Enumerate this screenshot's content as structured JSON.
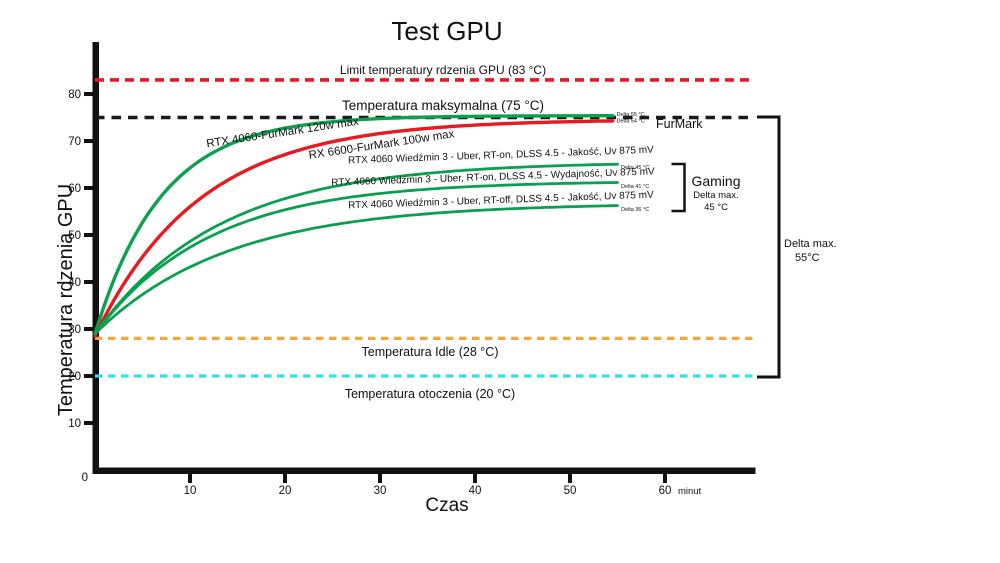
{
  "title": "Test GPU",
  "axes": {
    "y_label": "Temperatura rdzenia GPU",
    "x_label": "Czas",
    "x_unit": "minut",
    "origin_label": "0"
  },
  "annotations": {
    "furmark_group": "FurMark",
    "gaming_group": "Gaming",
    "gaming_sub1": "Delta max.",
    "gaming_sub2": "45 °C",
    "total_delta_line1": "Delta max.",
    "total_delta_line2": "55°C"
  },
  "chart_data": {
    "type": "line",
    "title": "Test GPU",
    "xlabel": "Czas",
    "x_unit": "minut",
    "ylabel": "Temperatura rdzenia GPU",
    "xlim": [
      0,
      69
    ],
    "ylim": [
      0,
      91
    ],
    "x_ticks": [
      10,
      20,
      30,
      40,
      50,
      60
    ],
    "y_ticks": [
      10,
      20,
      30,
      40,
      50,
      60,
      70,
      80
    ],
    "grid": false,
    "axis_color": "#111111",
    "reference_lines": [
      {
        "label": "Limit temperatury rdzenia GPU (83 °C)",
        "value": 83,
        "color": "#e8191f",
        "style": "dashed",
        "dash": "9 6",
        "width": 3.6
      },
      {
        "label": "Temperatura maksymalna (75 °C)",
        "value": 75,
        "color": "#1a1a1a",
        "style": "dashed",
        "dash": "9.5 7",
        "width": 3.6
      },
      {
        "label": "Temperatura Idle (28 °C)",
        "value": 28,
        "color": "#f3a63b",
        "style": "dashed",
        "dash": "7.5 5.5",
        "width": 3.2
      },
      {
        "label": "Temperatura otoczenia (20 °C)",
        "value": 20,
        "color": "#35dfe6",
        "style": "dashed",
        "dash": "7.5 5.5",
        "width": 3.2
      }
    ],
    "series": [
      {
        "name": "RTX 4060-FurMark 120w max",
        "color": "#0aa04e",
        "width": 3.4,
        "start_temp": 29,
        "asymptote_temp": 75.4,
        "tau_min": 7,
        "t_end": 54.5,
        "final_temp": 75,
        "delta_label": "Delta 55 °C",
        "delta_c": 55,
        "points": [
          [
            0,
            29
          ],
          [
            2,
            40.5
          ],
          [
            4,
            49
          ],
          [
            6,
            55.5
          ],
          [
            8,
            60.5
          ],
          [
            10,
            64
          ],
          [
            14,
            69
          ],
          [
            18,
            71.5
          ],
          [
            22,
            73
          ],
          [
            26,
            74
          ],
          [
            30,
            74.8
          ],
          [
            38,
            75.1
          ],
          [
            46,
            75.3
          ],
          [
            54.5,
            75.4
          ]
        ]
      },
      {
        "name": "RX 6600-FurMark 100w max",
        "color": "#e8191f",
        "width": 3.4,
        "start_temp": 28.5,
        "asymptote_temp": 74.6,
        "tau_min": 11,
        "t_end": 54.5,
        "final_temp": 74,
        "delta_label": "Delta 54 °C",
        "delta_c": 54,
        "points": [
          [
            0,
            28.5
          ],
          [
            2,
            36.5
          ],
          [
            4,
            43
          ],
          [
            6,
            48.5
          ],
          [
            8,
            53
          ],
          [
            10,
            57
          ],
          [
            14,
            63
          ],
          [
            18,
            67
          ],
          [
            22,
            69.5
          ],
          [
            26,
            71.5
          ],
          [
            30,
            72.5
          ],
          [
            38,
            73.7
          ],
          [
            46,
            74.2
          ],
          [
            54.5,
            74.4
          ]
        ]
      },
      {
        "name": "RTX 4060 Wiedźmin 3 - Uber, RT-on, DLSS 4.5 - Jakość, Uv 875 mV",
        "color": "#0aa04e",
        "width": 2.8,
        "start_temp": 29,
        "asymptote_temp": 65.6,
        "tau_min": 13,
        "t_end": 55,
        "final_temp": 65,
        "delta_label": "Delta 45 °C",
        "delta_c": 45,
        "points": [
          [
            0,
            29
          ],
          [
            2,
            34
          ],
          [
            4,
            38.5
          ],
          [
            6,
            42.5
          ],
          [
            8,
            46
          ],
          [
            10,
            48.5
          ],
          [
            14,
            53
          ],
          [
            18,
            56
          ],
          [
            22,
            58.5
          ],
          [
            26,
            60.5
          ],
          [
            30,
            61.5
          ],
          [
            38,
            63.3
          ],
          [
            46,
            64.3
          ],
          [
            55,
            65
          ]
        ]
      },
      {
        "name": "RTX 4060 Wiedźmin 3 - Uber, RT-on, DLSS 4.5 - Wydajność, Uv 875 mV",
        "color": "#0aa04e",
        "width": 2.8,
        "start_temp": 29,
        "asymptote_temp": 61.5,
        "tau_min": 12,
        "t_end": 55,
        "final_temp": 61,
        "delta_label": "Delta 41 °C",
        "delta_c": 41,
        "points": [
          [
            0,
            29
          ],
          [
            2,
            34
          ],
          [
            4,
            38
          ],
          [
            6,
            41.5
          ],
          [
            8,
            44.5
          ],
          [
            10,
            47
          ],
          [
            14,
            51
          ],
          [
            18,
            54
          ],
          [
            22,
            56
          ],
          [
            26,
            57.5
          ],
          [
            30,
            58.5
          ],
          [
            38,
            59.8
          ],
          [
            46,
            60.6
          ],
          [
            55,
            61
          ]
        ]
      },
      {
        "name": "RTX 4060 Wiedźmin 3 - Uber, RT-off, DLSS 4.5 - Jakość, Uv 875 mV",
        "color": "#0aa04e",
        "width": 2.8,
        "start_temp": 29,
        "asymptote_temp": 56.8,
        "tau_min": 14,
        "t_end": 55,
        "final_temp": 56,
        "delta_label": "Delta 36 °C",
        "delta_c": 36,
        "points": [
          [
            0,
            29
          ],
          [
            2,
            32.5
          ],
          [
            4,
            36
          ],
          [
            6,
            39
          ],
          [
            8,
            41.5
          ],
          [
            10,
            43.5
          ],
          [
            14,
            47
          ],
          [
            18,
            49.5
          ],
          [
            22,
            51.5
          ],
          [
            26,
            53
          ],
          [
            30,
            54
          ],
          [
            38,
            55.2
          ],
          [
            46,
            55.9
          ],
          [
            55,
            56.3
          ]
        ]
      }
    ]
  }
}
